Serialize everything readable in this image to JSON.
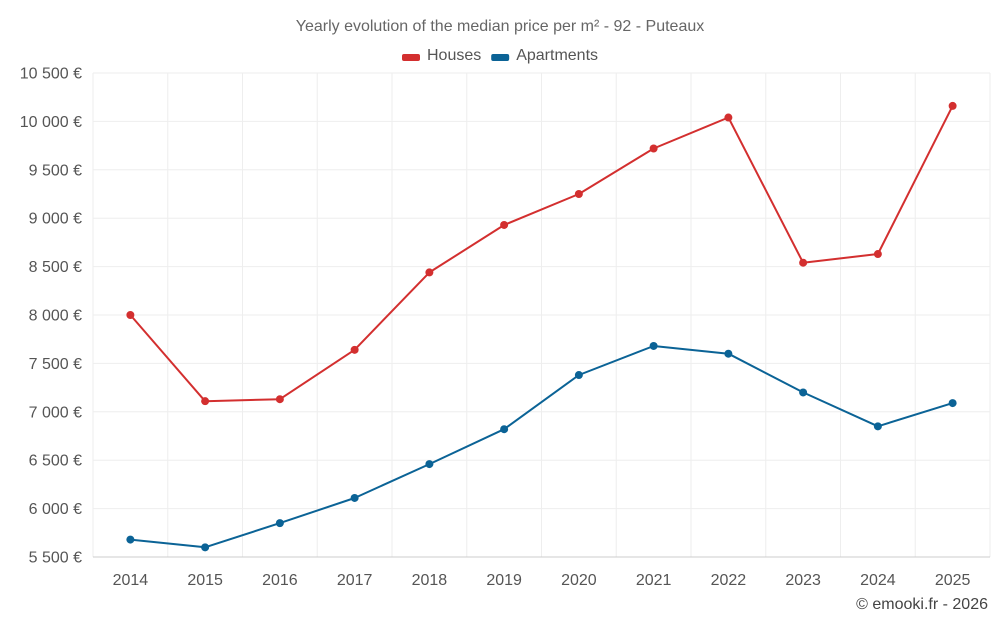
{
  "chart_data": {
    "type": "line",
    "title": "Yearly evolution of the median price per m² - 92 - Puteaux",
    "categories": [
      "2014",
      "2015",
      "2016",
      "2017",
      "2018",
      "2019",
      "2020",
      "2021",
      "2022",
      "2023",
      "2024",
      "2025"
    ],
    "series": [
      {
        "name": "Houses",
        "color": "#d32f2f",
        "values": [
          8000,
          7110,
          7130,
          7640,
          8440,
          8930,
          9250,
          9720,
          10040,
          8540,
          8630,
          10160
        ]
      },
      {
        "name": "Apartments",
        "color": "#0b6396",
        "values": [
          5680,
          5600,
          5850,
          6110,
          6460,
          6820,
          7380,
          7680,
          7600,
          7200,
          6850,
          7090
        ]
      }
    ],
    "ylim": [
      5500,
      10500
    ],
    "yticks": [
      5500,
      6000,
      6500,
      7000,
      7500,
      8000,
      8500,
      9000,
      9500,
      10000,
      10500
    ],
    "ytick_labels": [
      "5 500 €",
      "6 000 €",
      "6 500 €",
      "7 000 €",
      "7 500 €",
      "8 000 €",
      "8 500 €",
      "9 000 €",
      "9 500 €",
      "10 000 €",
      "10 500 €"
    ],
    "grid": true,
    "legend_position": "top-center",
    "credit": "© emooki.fr - 2026"
  }
}
